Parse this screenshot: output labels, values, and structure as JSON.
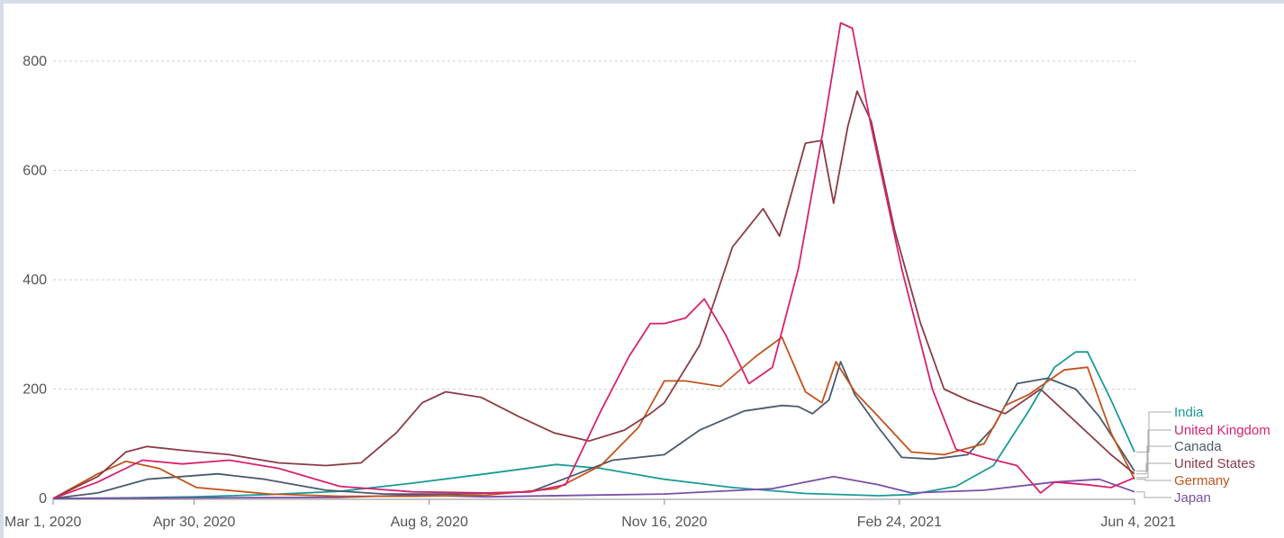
{
  "chart_data": {
    "type": "line",
    "title": "",
    "xlabel": "",
    "ylabel": "",
    "ylim": [
      0,
      880
    ],
    "yticks": [
      0,
      200,
      400,
      600,
      800
    ],
    "xticks": [
      "Mar 1, 2020",
      "Apr 30, 2020",
      "Aug 8, 2020",
      "Nov 16, 2020",
      "Feb 24, 2021",
      "Jun 4, 2021"
    ],
    "grid": "horizontal dashed",
    "legend": "right, labels at line ends",
    "series": [
      {
        "name": "India",
        "color": "#1a9a96",
        "points": [
          [
            "2020-03-01",
            0
          ],
          [
            "2020-04-01",
            1
          ],
          [
            "2020-05-01",
            3
          ],
          [
            "2020-06-01",
            7
          ],
          [
            "2020-07-01",
            13
          ],
          [
            "2020-08-01",
            28
          ],
          [
            "2020-09-01",
            45
          ],
          [
            "2020-10-01",
            62
          ],
          [
            "2020-10-20",
            55
          ],
          [
            "2020-11-16",
            35
          ],
          [
            "2020-12-15",
            20
          ],
          [
            "2021-01-15",
            9
          ],
          [
            "2021-02-15",
            5
          ],
          [
            "2021-03-01",
            7
          ],
          [
            "2021-03-20",
            22
          ],
          [
            "2021-04-05",
            60
          ],
          [
            "2021-04-20",
            160
          ],
          [
            "2021-05-01",
            240
          ],
          [
            "2021-05-10",
            268
          ],
          [
            "2021-05-15",
            268
          ],
          [
            "2021-05-25",
            180
          ],
          [
            "2021-06-04",
            85
          ]
        ]
      },
      {
        "name": "United Kingdom",
        "color": "#d6226f",
        "points": [
          [
            "2020-03-01",
            0
          ],
          [
            "2020-03-20",
            30
          ],
          [
            "2020-04-08",
            70
          ],
          [
            "2020-04-25",
            63
          ],
          [
            "2020-05-15",
            70
          ],
          [
            "2020-06-05",
            55
          ],
          [
            "2020-07-01",
            22
          ],
          [
            "2020-08-01",
            12
          ],
          [
            "2020-09-01",
            10
          ],
          [
            "2020-09-20",
            12
          ],
          [
            "2020-10-05",
            25
          ],
          [
            "2020-10-20",
            160
          ],
          [
            "2020-11-01",
            260
          ],
          [
            "2020-11-10",
            320
          ],
          [
            "2020-11-16",
            320
          ],
          [
            "2020-11-25",
            330
          ],
          [
            "2020-12-03",
            365
          ],
          [
            "2020-12-12",
            300
          ],
          [
            "2020-12-22",
            210
          ],
          [
            "2021-01-01",
            240
          ],
          [
            "2021-01-12",
            420
          ],
          [
            "2021-01-22",
            660
          ],
          [
            "2021-01-30",
            870
          ],
          [
            "2021-02-04",
            860
          ],
          [
            "2021-02-12",
            680
          ],
          [
            "2021-02-25",
            420
          ],
          [
            "2021-03-10",
            200
          ],
          [
            "2021-03-20",
            90
          ],
          [
            "2021-04-01",
            75
          ],
          [
            "2021-04-15",
            60
          ],
          [
            "2021-04-25",
            10
          ],
          [
            "2021-05-01",
            30
          ],
          [
            "2021-05-15",
            25
          ],
          [
            "2021-05-25",
            20
          ],
          [
            "2021-06-04",
            38
          ]
        ]
      },
      {
        "name": "Canada",
        "color": "#4a5a6e",
        "points": [
          [
            "2020-03-01",
            0
          ],
          [
            "2020-03-20",
            10
          ],
          [
            "2020-04-10",
            35
          ],
          [
            "2020-04-25",
            40
          ],
          [
            "2020-05-10",
            45
          ],
          [
            "2020-05-30",
            35
          ],
          [
            "2020-06-25",
            15
          ],
          [
            "2020-07-20",
            8
          ],
          [
            "2020-08-20",
            8
          ],
          [
            "2020-09-20",
            12
          ],
          [
            "2020-10-10",
            45
          ],
          [
            "2020-10-25",
            70
          ],
          [
            "2020-11-16",
            80
          ],
          [
            "2020-12-01",
            125
          ],
          [
            "2020-12-20",
            160
          ],
          [
            "2021-01-05",
            170
          ],
          [
            "2021-01-12",
            168
          ],
          [
            "2021-01-18",
            155
          ],
          [
            "2021-01-25",
            180
          ],
          [
            "2021-01-30",
            250
          ],
          [
            "2021-02-05",
            190
          ],
          [
            "2021-02-15",
            130
          ],
          [
            "2021-02-25",
            75
          ],
          [
            "2021-03-10",
            72
          ],
          [
            "2021-03-25",
            80
          ],
          [
            "2021-04-05",
            130
          ],
          [
            "2021-04-15",
            210
          ],
          [
            "2021-04-28",
            220
          ],
          [
            "2021-05-10",
            200
          ],
          [
            "2021-05-20",
            150
          ],
          [
            "2021-06-04",
            50
          ]
        ]
      },
      {
        "name": "United States",
        "color": "#8b3b45",
        "points": [
          [
            "2020-03-01",
            0
          ],
          [
            "2020-03-20",
            40
          ],
          [
            "2020-04-01",
            85
          ],
          [
            "2020-04-10",
            95
          ],
          [
            "2020-04-25",
            88
          ],
          [
            "2020-05-15",
            80
          ],
          [
            "2020-06-05",
            65
          ],
          [
            "2020-06-25",
            60
          ],
          [
            "2020-07-10",
            65
          ],
          [
            "2020-07-25",
            120
          ],
          [
            "2020-08-05",
            175
          ],
          [
            "2020-08-15",
            195
          ],
          [
            "2020-08-30",
            185
          ],
          [
            "2020-09-15",
            150
          ],
          [
            "2020-09-30",
            120
          ],
          [
            "2020-10-15",
            105
          ],
          [
            "2020-10-30",
            125
          ],
          [
            "2020-11-10",
            155
          ],
          [
            "2020-11-16",
            175
          ],
          [
            "2020-12-01",
            280
          ],
          [
            "2020-12-15",
            460
          ],
          [
            "2020-12-28",
            530
          ],
          [
            "2021-01-04",
            480
          ],
          [
            "2021-01-15",
            650
          ],
          [
            "2021-01-22",
            655
          ],
          [
            "2021-01-27",
            540
          ],
          [
            "2021-02-02",
            680
          ],
          [
            "2021-02-06",
            745
          ],
          [
            "2021-02-12",
            690
          ],
          [
            "2021-02-22",
            490
          ],
          [
            "2021-03-05",
            320
          ],
          [
            "2021-03-15",
            200
          ],
          [
            "2021-03-25",
            180
          ],
          [
            "2021-04-10",
            155
          ],
          [
            "2021-04-25",
            200
          ],
          [
            "2021-05-10",
            140
          ],
          [
            "2021-05-25",
            80
          ],
          [
            "2021-06-04",
            45
          ]
        ]
      },
      {
        "name": "Germany",
        "color": "#c0541c",
        "points": [
          [
            "2020-03-01",
            0
          ],
          [
            "2020-03-20",
            45
          ],
          [
            "2020-04-01",
            68
          ],
          [
            "2020-04-15",
            55
          ],
          [
            "2020-05-01",
            20
          ],
          [
            "2020-06-01",
            8
          ],
          [
            "2020-07-01",
            4
          ],
          [
            "2020-08-01",
            4
          ],
          [
            "2020-09-01",
            6
          ],
          [
            "2020-10-01",
            18
          ],
          [
            "2020-10-20",
            60
          ],
          [
            "2020-11-05",
            130
          ],
          [
            "2020-11-16",
            215
          ],
          [
            "2020-11-25",
            215
          ],
          [
            "2020-12-10",
            205
          ],
          [
            "2020-12-25",
            260
          ],
          [
            "2021-01-05",
            295
          ],
          [
            "2021-01-15",
            195
          ],
          [
            "2021-01-22",
            175
          ],
          [
            "2021-01-28",
            250
          ],
          [
            "2021-02-05",
            195
          ],
          [
            "2021-02-15",
            150
          ],
          [
            "2021-03-01",
            85
          ],
          [
            "2021-03-15",
            80
          ],
          [
            "2021-04-01",
            100
          ],
          [
            "2021-04-10",
            170
          ],
          [
            "2021-04-20",
            190
          ],
          [
            "2021-05-05",
            235
          ],
          [
            "2021-05-15",
            240
          ],
          [
            "2021-05-25",
            120
          ],
          [
            "2021-06-04",
            35
          ]
        ]
      },
      {
        "name": "Japan",
        "color": "#7a4fa6",
        "points": [
          [
            "2020-03-01",
            0
          ],
          [
            "2020-05-01",
            1
          ],
          [
            "2020-07-01",
            2
          ],
          [
            "2020-08-01",
            6
          ],
          [
            "2020-09-01",
            3
          ],
          [
            "2020-11-16",
            8
          ],
          [
            "2021-01-01",
            18
          ],
          [
            "2021-01-27",
            40
          ],
          [
            "2021-02-15",
            25
          ],
          [
            "2021-03-01",
            10
          ],
          [
            "2021-04-01",
            15
          ],
          [
            "2021-05-01",
            30
          ],
          [
            "2021-05-20",
            35
          ],
          [
            "2021-06-04",
            12
          ]
        ]
      }
    ]
  }
}
